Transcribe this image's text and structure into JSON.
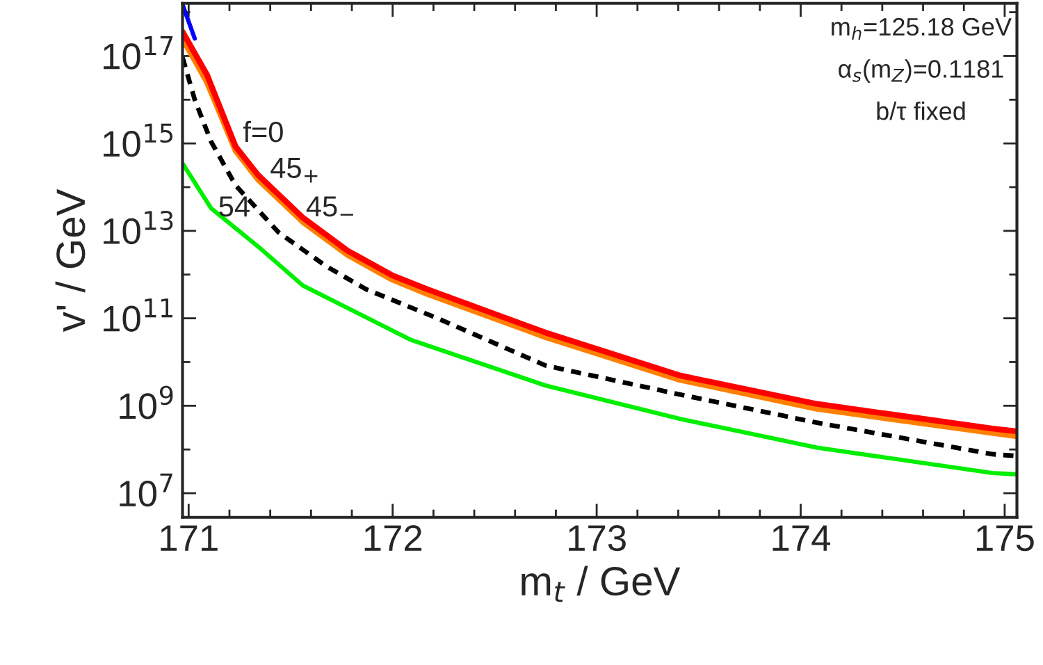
{
  "chart_data": {
    "type": "line",
    "xlabel": "m$_{t}$ / GeV",
    "ylabel": "v' / GeV",
    "log": "y",
    "xlim": [
      170.97,
      175.06
    ],
    "ylim": [
      2800000.0,
      1.6e+18
    ],
    "xticks": [
      171,
      {
        "value": 171.2,
        "label": null
      },
      {
        "value": 171.4,
        "label": null
      },
      {
        "value": 171.6,
        "label": null
      },
      {
        "value": 171.8,
        "label": null
      },
      172,
      {
        "value": 172.2,
        "label": null
      },
      {
        "value": 172.4,
        "label": null
      },
      {
        "value": 172.6,
        "label": null
      },
      {
        "value": 172.8,
        "label": null
      },
      173,
      {
        "value": 173.2,
        "label": null
      },
      {
        "value": 173.4,
        "label": null
      },
      {
        "value": 173.6,
        "label": null
      },
      {
        "value": 173.8,
        "label": null
      },
      174,
      {
        "value": 174.2,
        "label": null
      },
      {
        "value": 174.4,
        "label": null
      },
      {
        "value": 174.6,
        "label": null
      },
      {
        "value": 174.8,
        "label": null
      },
      175
    ],
    "yticks": [
      {
        "value": 10000000.0,
        "label": "10$^{7}$"
      },
      {
        "value": 100000000.0,
        "label": null
      },
      {
        "value": 1000000000.0,
        "label": "10$^{9}$"
      },
      {
        "value": 10000000000.0,
        "label": null
      },
      {
        "value": 100000000000.0,
        "label": "10$^{11}$"
      },
      {
        "value": 1000000000000.0,
        "label": null
      },
      {
        "value": 10000000000000.0,
        "label": "10$^{13}$"
      },
      {
        "value": 100000000000000.0,
        "label": null
      },
      {
        "value": 1000000000000000.0,
        "label": "10$^{15}$"
      },
      {
        "value": 1e+16,
        "label": null
      },
      {
        "value": 1e+17,
        "label": "10$^{17}$"
      },
      {
        "value": 1e+18,
        "label": null
      }
    ],
    "grid": false,
    "series": [
      {
        "color": "#0000ff",
        "line_style": "solid",
        "x": [
          170.97,
          171.03
        ],
        "values": [
          1.5e+18,
          2.5e+17
        ]
      },
      {
        "color": "#ff8000",
        "line_style": "solid",
        "x": [
          170.97,
          171.09,
          171.23,
          171.34,
          171.56,
          171.78,
          172.0,
          172.17,
          172.75,
          173.41,
          174.08,
          174.94,
          175.06
        ],
        "values": [
          2.5e+17,
          2.5e+16,
          680000000000000.0,
          150000000000000.0,
          16000000000000.0,
          2800000000000.0,
          760000000000.0,
          360000000000.0,
          37000000000.0,
          3900000000.0,
          850000000.0,
          240000000.0,
          200000000.0
        ]
      },
      {
        "color": "#ff0000",
        "line_style": "solid",
        "x": [
          170.97,
          171.09,
          171.23,
          171.34,
          171.56,
          171.78,
          172.0,
          172.17,
          172.75,
          173.41,
          174.08,
          174.94,
          175.06
        ],
        "values": [
          3.6e+17,
          3.7e+16,
          850000000000000.0,
          190000000000000.0,
          20000000000000.0,
          3500000000000.0,
          950000000000.0,
          460000000000.0,
          47000000000.0,
          4900000000.0,
          1100000000.0,
          300000000.0,
          260000000.0
        ]
      },
      {
        "color": "#000000",
        "line_style": "dashed",
        "x": [
          170.97,
          171.03,
          171.11,
          171.23,
          171.44,
          171.67,
          171.87,
          172.22,
          172.75,
          173.41,
          174.08,
          174.94,
          175.06
        ],
        "values": [
          9.3e+16,
          1e+16,
          1100000000000000.0,
          110000000000000.0,
          9300000000000.0,
          1600000000000.0,
          460000000000.0,
          100000000000.0,
          8300000000.0,
          1800000000.0,
          410000000.0,
          78000000.0,
          71000000.0
        ]
      },
      {
        "color": "#00ee00",
        "line_style": "solid",
        "x": [
          170.97,
          171.11,
          171.34,
          171.56,
          172.09,
          172.75,
          173.41,
          174.08,
          174.94,
          175.06
        ],
        "values": [
          350000000000000.0,
          33000000000000.0,
          4400000000000.0,
          560000000000.0,
          32000000000.0,
          2900000000.0,
          500000000.0,
          110000000.0,
          29000000.0,
          27000000.0
        ]
      }
    ],
    "annotations": [
      "f=0",
      "45$_{+}$",
      "45$_{−}$",
      "54",
      "m$_{h}$=125.18 GeV",
      "α$_{s}$(m$_{Z}$)=0.1181",
      "b/τ fixed"
    ]
  }
}
